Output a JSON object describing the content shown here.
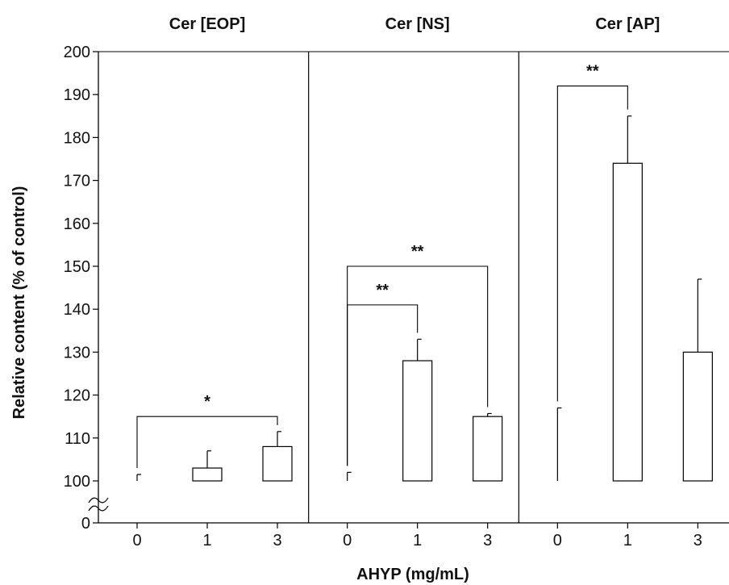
{
  "chart_data": {
    "type": "bar",
    "ylabel": "Relative content (% of control)",
    "xlabel": "AHYP  (mg/mL)",
    "ylim": [
      90,
      200
    ],
    "y_ticks": [
      {
        "value": 0,
        "label": "0"
      },
      {
        "value": 100,
        "label": "100"
      },
      {
        "value": 110,
        "label": "110"
      },
      {
        "value": 120,
        "label": "120"
      },
      {
        "value": 130,
        "label": "130"
      },
      {
        "value": 140,
        "label": "140"
      },
      {
        "value": 150,
        "label": "150"
      },
      {
        "value": 160,
        "label": "160"
      },
      {
        "value": 170,
        "label": "170"
      },
      {
        "value": 180,
        "label": "180"
      },
      {
        "value": 190,
        "label": "190"
      },
      {
        "value": 200,
        "label": "200"
      }
    ],
    "axis_break": true,
    "colors": {
      "control": "#000000",
      "treated": "#ffffff",
      "stroke": "#000000"
    },
    "panels": [
      {
        "title": "Cer [EOP]",
        "categories": [
          "0",
          "1",
          "3"
        ],
        "values": [
          100,
          103,
          108
        ],
        "errors": [
          1.5,
          4,
          3.5
        ],
        "significance": [
          {
            "from": 0,
            "to": 2,
            "label": "*",
            "bracket_y": 115
          }
        ]
      },
      {
        "title": "Cer [NS]",
        "categories": [
          "0",
          "1",
          "3"
        ],
        "values": [
          100,
          128,
          115
        ],
        "errors": [
          2,
          5,
          0.7
        ],
        "significance": [
          {
            "from": 0,
            "to": 1,
            "label": "**",
            "bracket_y": 141
          },
          {
            "from": 0,
            "to": 2,
            "label": "**",
            "bracket_y": 150
          }
        ]
      },
      {
        "title": "Cer [AP]",
        "categories": [
          "0",
          "1",
          "3"
        ],
        "values": [
          100,
          174,
          130
        ],
        "errors": [
          17,
          11,
          17
        ],
        "significance": [
          {
            "from": 0,
            "to": 1,
            "label": "**",
            "bracket_y": 192
          }
        ]
      }
    ]
  }
}
